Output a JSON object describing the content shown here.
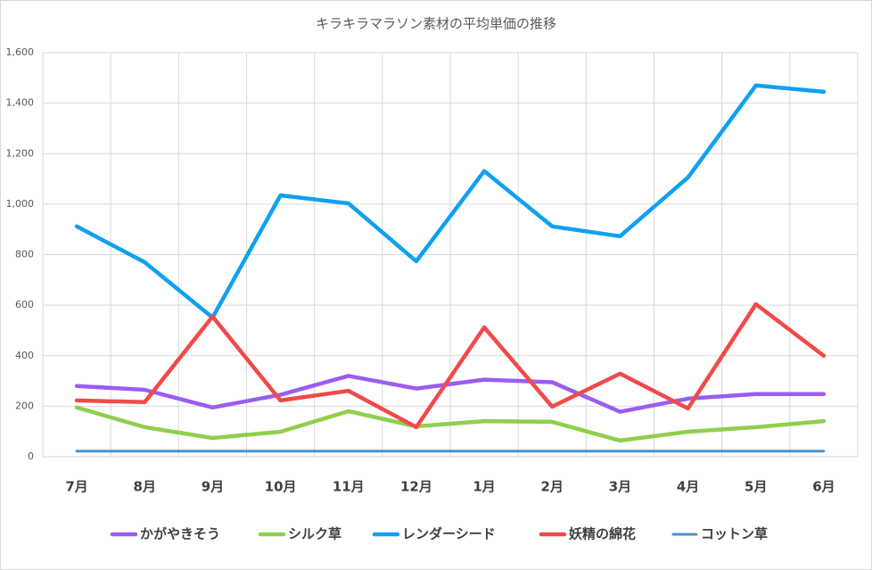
{
  "chart_data": {
    "type": "line",
    "title": "キラキラマラソン素材の平均単価の推移",
    "categories": [
      "7月",
      "8月",
      "9月",
      "10月",
      "11月",
      "12月",
      "1月",
      "2月",
      "3月",
      "4月",
      "5月",
      "6月"
    ],
    "series": [
      {
        "name": "かがやきそう",
        "color": "#9b5cf0",
        "values": [
          280,
          265,
          195,
          245,
          320,
          270,
          305,
          295,
          178,
          230,
          248,
          248
        ]
      },
      {
        "name": "シルク草",
        "color": "#8fcf4c",
        "values": [
          195,
          117,
          74,
          99,
          180,
          120,
          141,
          138,
          64,
          99,
          117,
          141
        ]
      },
      {
        "name": "レンダーシード",
        "color": "#10a0f0",
        "values": [
          912,
          770,
          551,
          1035,
          1003,
          774,
          1131,
          912,
          873,
          1106,
          1470,
          1445
        ]
      },
      {
        "name": "妖精の綿花",
        "color": "#f04a4a",
        "values": [
          223,
          216,
          555,
          223,
          261,
          117,
          512,
          198,
          329,
          191,
          604,
          400
        ]
      },
      {
        "name": "コットン草",
        "color": "#4e90d0",
        "values": [
          22,
          22,
          22,
          22,
          22,
          22,
          22,
          22,
          22,
          22,
          22,
          22
        ]
      }
    ],
    "ylim": [
      0,
      1600
    ],
    "yticks": [
      0,
      200,
      400,
      600,
      800,
      {
        "value": 1000,
        "label": "1,000"
      },
      {
        "value": 1200,
        "label": "1,200"
      },
      {
        "value": 1400,
        "label": "1,400"
      },
      {
        "value": 1600,
        "label": "1,600"
      }
    ],
    "grid": true,
    "legend": "bottom"
  }
}
